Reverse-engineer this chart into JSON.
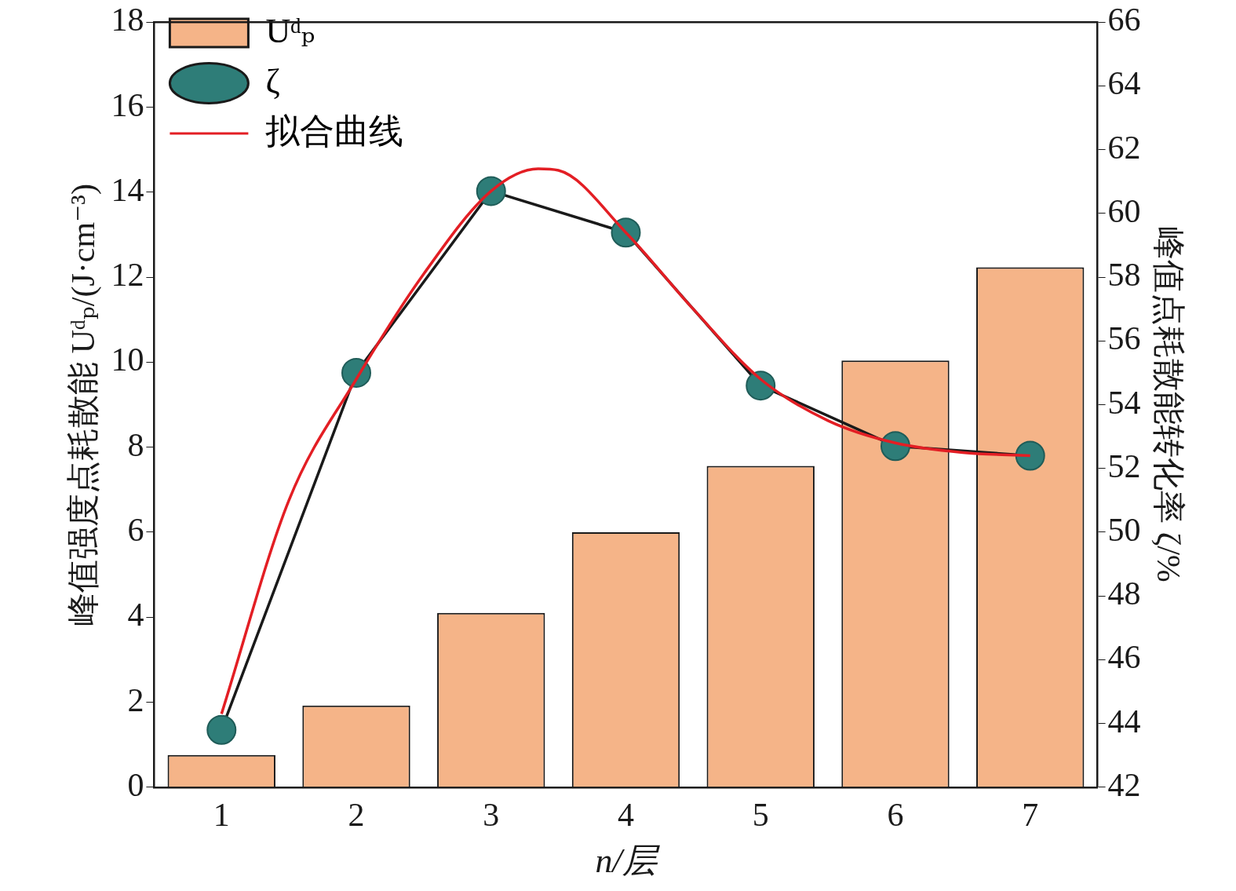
{
  "chart_data": {
    "type": "bar",
    "x": [
      1,
      2,
      3,
      4,
      5,
      6,
      7
    ],
    "xlim": [
      0.5,
      7.5
    ],
    "xticks": [
      1,
      2,
      3,
      4,
      5,
      6,
      7
    ],
    "xlabel": "n/层",
    "ylabel": "峰值强度点耗散能 Uᵈₚ/(J·cm⁻³)",
    "y2label": "峰值点耗散能转化率 ζ/%",
    "ylim": [
      0,
      18
    ],
    "yticks": [
      0,
      2,
      4,
      6,
      8,
      10,
      12,
      14,
      16,
      18
    ],
    "y2lim": [
      42,
      66
    ],
    "y2ticks": [
      42,
      44,
      46,
      48,
      50,
      52,
      54,
      56,
      58,
      60,
      62,
      64,
      66
    ],
    "legend": "top left",
    "grid": false,
    "series": [
      {
        "name": "Uᵈₚ",
        "color": "#f5b488",
        "values": [
          0.76,
          1.92,
          4.1,
          6.0,
          7.56,
          10.04,
          12.23
        ]
      },
      {
        "name": "ζ",
        "type": "line",
        "axis": "y2",
        "color": "#2e7d78",
        "marker": "circle",
        "values": [
          43.8,
          55.0,
          60.7,
          59.4,
          54.6,
          52.7,
          52.4
        ]
      },
      {
        "name": "拟合曲线",
        "type": "line",
        "axis": "y2",
        "color": "#e31e24",
        "marker": "none",
        "x": [
          1,
          1.5,
          2,
          2.5,
          3,
          3.35,
          3.5,
          4,
          4.5,
          5,
          5.5,
          6,
          6.5,
          7
        ],
        "values": [
          44.3,
          51.0,
          54.8,
          58.1,
          60.7,
          61.4,
          61.35,
          59.4,
          57.0,
          54.8,
          53.5,
          52.8,
          52.5,
          52.4
        ]
      }
    ]
  }
}
